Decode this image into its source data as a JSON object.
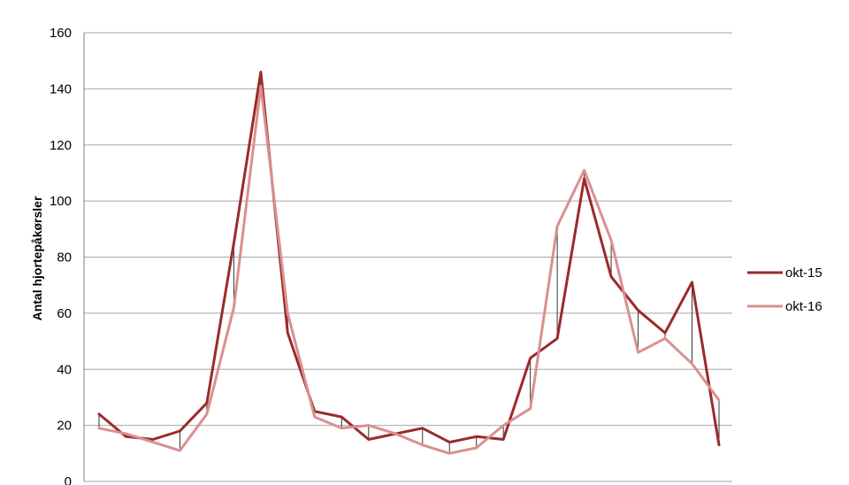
{
  "chart_data": {
    "type": "line",
    "title": "",
    "xlabel": "",
    "ylabel": "Antal hjortepåkørsler",
    "ylim": [
      0,
      160
    ],
    "yticks": [
      "0",
      "20",
      "40",
      "60",
      "80",
      "100",
      "120",
      "140",
      "160"
    ],
    "grid": true,
    "legend_position": "right",
    "high_low_lines": true,
    "series": [
      {
        "name": "okt-15",
        "color": "#9b2a2a",
        "values": [
          24,
          16,
          15,
          18,
          28,
          85,
          146,
          53,
          25,
          23,
          15,
          17,
          19,
          14,
          16,
          15,
          44,
          51,
          108,
          73,
          61,
          53,
          71,
          13
        ]
      },
      {
        "name": "okt-16",
        "color": "#d99090",
        "values": [
          19,
          17,
          14,
          11,
          24,
          62,
          141,
          60,
          23,
          19,
          20,
          17,
          13,
          10,
          12,
          20,
          26,
          91,
          111,
          86,
          46,
          51,
          42,
          29
        ]
      }
    ]
  }
}
